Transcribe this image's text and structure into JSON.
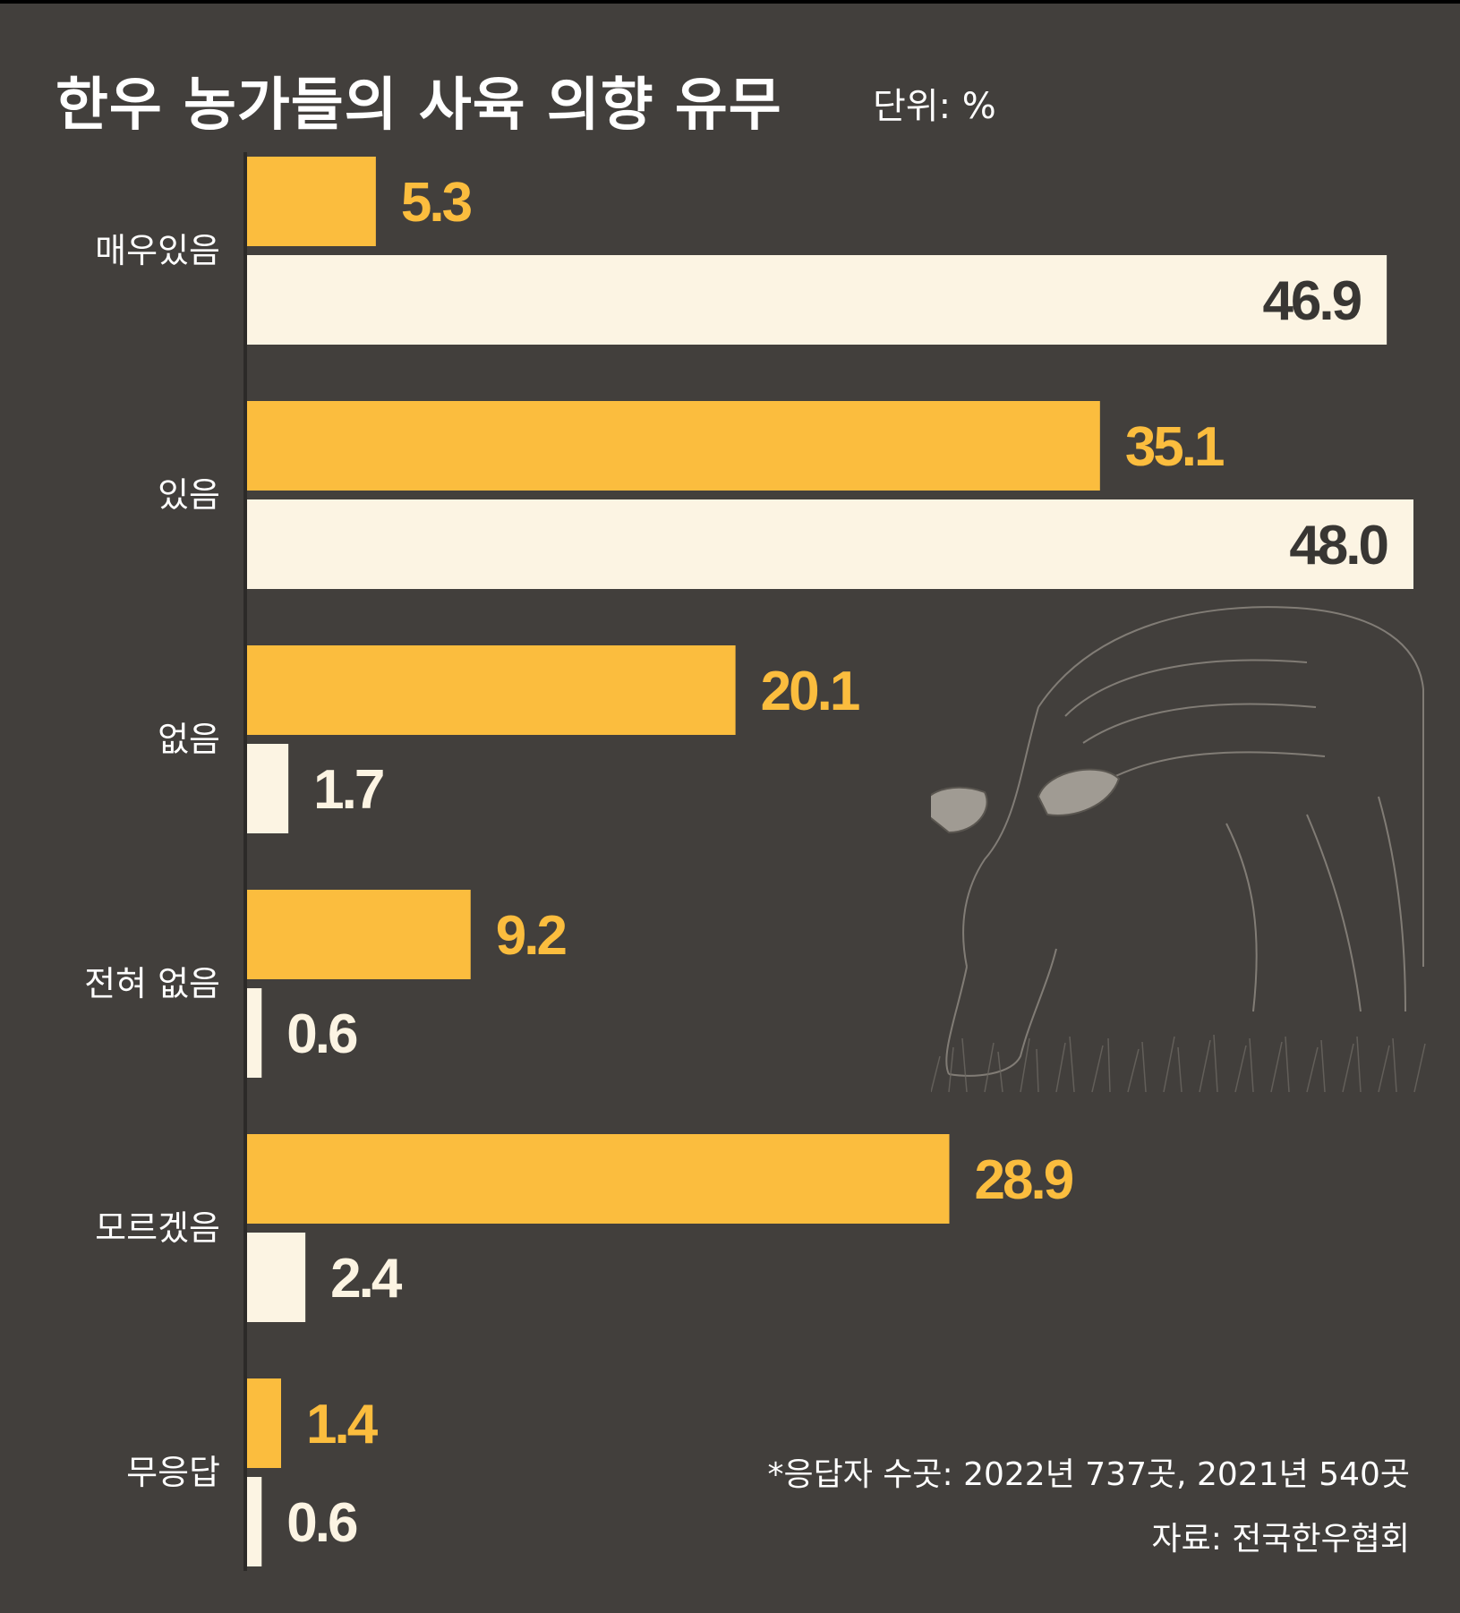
{
  "title": "한우 농가들의 사육 의향 유무",
  "unit": "단위: %",
  "note": "*응답자 수곳: 2022년 737곳, 2021년 540곳",
  "source": "자료: 전국한우협회",
  "colors": {
    "background": "#423f3c",
    "series_2021": "#fbbd3e",
    "series_2022": "#fcf4e3",
    "value_2022_text": "#383633"
  },
  "chart_data": {
    "type": "bar",
    "orientation": "horizontal",
    "categories": [
      "매우있음",
      "있음",
      "없음",
      "전혀 없음",
      "모르겠음",
      "무응답"
    ],
    "series": [
      {
        "values": [
          5.3,
          35.1,
          20.1,
          9.2,
          28.9,
          1.4
        ]
      },
      {
        "values": [
          46.9,
          48.0,
          1.7,
          0.6,
          2.4,
          0.6
        ]
      }
    ],
    "value_labels": [
      [
        "5.3",
        "35.1",
        "20.1",
        "9.2",
        "28.9",
        "1.4"
      ],
      [
        "46.9",
        "48.0",
        "1.7",
        "0.6",
        "2.4",
        "0.6"
      ]
    ],
    "xlim": [
      0,
      48.0
    ],
    "grid": false,
    "legend": "none"
  }
}
